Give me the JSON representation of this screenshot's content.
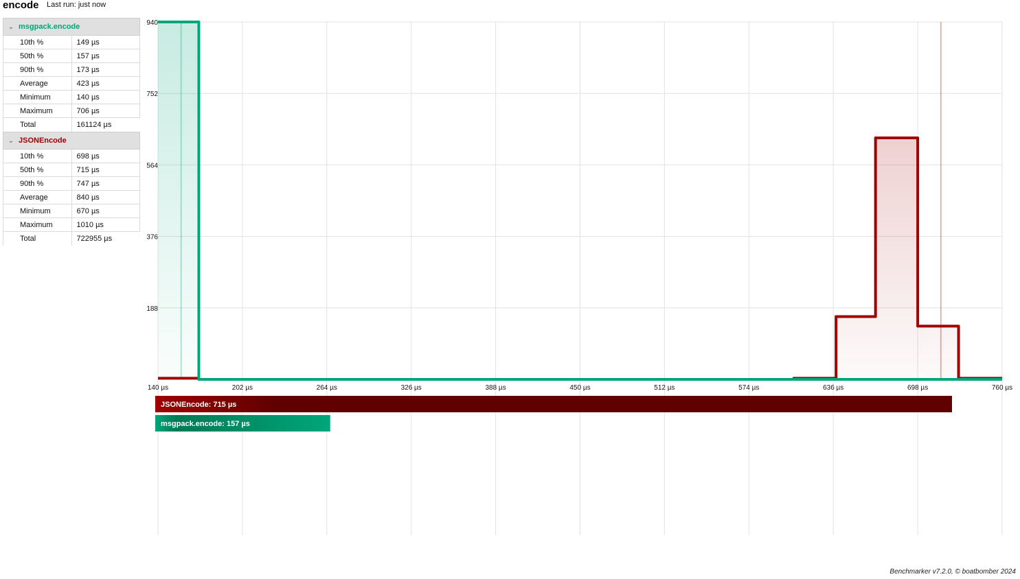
{
  "header": {
    "title": "encode",
    "last_run": "Last run: just now"
  },
  "groups": [
    {
      "name": "msgpack.encode",
      "color": "#00a67a",
      "stats": [
        {
          "label": "10th %",
          "value": "149 µs"
        },
        {
          "label": "50th %",
          "value": "157 µs"
        },
        {
          "label": "90th %",
          "value": "173 µs"
        },
        {
          "label": "Average",
          "value": "423 µs"
        },
        {
          "label": "Minimum",
          "value": "140 µs"
        },
        {
          "label": "Maximum",
          "value": "706 µs"
        },
        {
          "label": "Total",
          "value": "161124 µs"
        }
      ]
    },
    {
      "name": "JSONEncode",
      "color": "#a00000",
      "stats": [
        {
          "label": "10th %",
          "value": "698 µs"
        },
        {
          "label": "50th %",
          "value": "715 µs"
        },
        {
          "label": "90th %",
          "value": "747 µs"
        },
        {
          "label": "Average",
          "value": "840 µs"
        },
        {
          "label": "Minimum",
          "value": "670 µs"
        },
        {
          "label": "Maximum",
          "value": "1010 µs"
        },
        {
          "label": "Total",
          "value": "722955 µs"
        }
      ]
    }
  ],
  "chart_data": [
    {
      "type": "line",
      "x_ticks": [
        "140 µs",
        "202 µs",
        "264 µs",
        "326 µs",
        "388 µs",
        "450 µs",
        "512 µs",
        "574 µs",
        "636 µs",
        "698 µs",
        "760 µs"
      ],
      "y_ticks": [
        940,
        752,
        564,
        376,
        188
      ],
      "xlim": [
        140,
        760
      ],
      "ylim": [
        0,
        940
      ],
      "grid": true,
      "series": [
        {
          "name": "msgpack.encode",
          "color": "#00a67a",
          "steps": [
            {
              "x0": 140,
              "x1": 170,
              "y": 940
            },
            {
              "x0": 170,
              "x1": 760,
              "y": 0
            }
          ],
          "median": 157
        },
        {
          "name": "JSONEncode",
          "color": "#a00000",
          "steps": [
            {
              "x0": 140,
              "x1": 170,
              "y": 3
            },
            {
              "x0": 170,
              "x1": 607,
              "y": 0
            },
            {
              "x0": 607,
              "x1": 638,
              "y": 3
            },
            {
              "x0": 638,
              "x1": 667,
              "y": 165
            },
            {
              "x0": 667,
              "x1": 698,
              "y": 635
            },
            {
              "x0": 698,
              "x1": 728,
              "y": 140
            },
            {
              "x0": 728,
              "x1": 760,
              "y": 3
            }
          ],
          "median": 715
        }
      ]
    },
    {
      "type": "bar",
      "orientation": "horizontal",
      "categories": [
        "JSONEncode: 715 µs",
        "msgpack.encode: 157 µs"
      ],
      "values": [
        715,
        157
      ],
      "colors": [
        "#600000",
        "#007a55"
      ]
    }
  ],
  "footer": "Benchmarker v7.2.0, © boatbomber 2024"
}
